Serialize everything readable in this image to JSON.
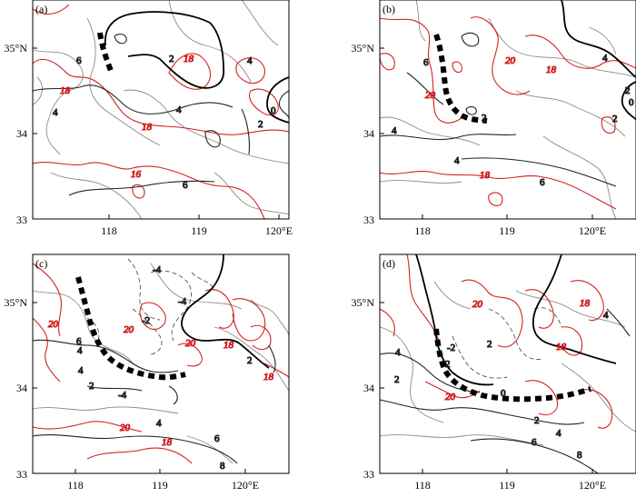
{
  "panels": [
    {
      "id": "a",
      "tag": "(a)",
      "red_labels": [
        "18",
        "18",
        "18",
        "16"
      ],
      "black_labels": [
        "6",
        "2",
        "4",
        "4",
        "4",
        "0",
        "6",
        "2"
      ]
    },
    {
      "id": "b",
      "tag": "(b)",
      "red_labels": [
        "20",
        "20",
        "18",
        "18"
      ],
      "black_labels": [
        "6",
        "4",
        "2",
        "4",
        "6",
        "2",
        "4",
        "2",
        "0"
      ]
    },
    {
      "id": "c",
      "tag": "(c)",
      "red_labels": [
        "20",
        "20",
        "20",
        "18",
        "18",
        "20",
        "18"
      ],
      "black_labels": [
        "-4",
        "-4",
        "-2",
        "4",
        "6",
        "2",
        "4",
        "-4",
        "4",
        "6",
        "8",
        "2"
      ]
    },
    {
      "id": "d",
      "tag": "(d)",
      "red_labels": [
        "20",
        "20",
        "18",
        "18"
      ],
      "black_labels": [
        "4",
        "-2",
        "2",
        "2",
        "0",
        "2",
        "4",
        "6",
        "8",
        "2",
        "4"
      ]
    }
  ],
  "axes": {
    "x_ticks": [
      "118",
      "119",
      "120°E"
    ],
    "y_ticks": [
      "35°N",
      "34",
      "33"
    ]
  }
}
